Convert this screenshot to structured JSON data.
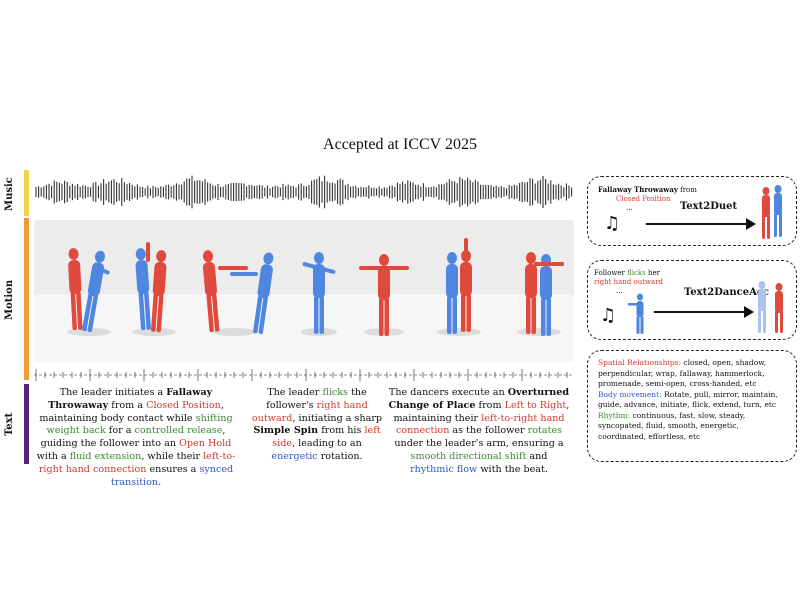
{
  "header": {
    "title": "Accepted at ICCV 2025"
  },
  "rows": {
    "music": "Music",
    "motion": "Motion",
    "text": "Text"
  },
  "colors": {
    "music": "#f1d34c",
    "motion": "#f19a35",
    "text": "#5a1f7a",
    "red": "#d03a2c",
    "green": "#3b8a2f",
    "blue": "#2f58c8"
  },
  "captions": {
    "c1": {
      "p1": "The leader initiates a ",
      "b1": "Fallaway Throwaway",
      "p2": " from a ",
      "r1": "Closed Position",
      "p3": ", maintaining body contact while ",
      "g1": "shifting weight back",
      "p4": " for a ",
      "g2": "controlled release",
      "p5": ", guiding the follower into an ",
      "r2": "Open Hold",
      "p6": " with a ",
      "g3": "fluid extension",
      "p7": ", while their ",
      "r3": "left-to-right hand connection",
      "p8": " ensures a ",
      "bl1": "synced transition",
      "p9": "."
    },
    "c2": {
      "p1": "The leader ",
      "g1": "flicks",
      "p2": " the follower's ",
      "r1": "right hand outward",
      "p3": ", initiating a sharp ",
      "b1": "Simple Spin",
      "p4": " from his ",
      "r2": "left side",
      "p5": ", leading to an ",
      "bl1": "energetic",
      "p6": " rotation."
    },
    "c3": {
      "p1": "The dancers execute an ",
      "b1": "Overturned Change of Place",
      "p2": " from ",
      "r1": "Left to Right",
      "p3": ", maintaining their ",
      "r2": "left-to-right hand connection",
      "p4": " as the follower ",
      "g1": "rotates",
      "p5": " under the leader's arm, ensuring a ",
      "g2": "smooth directional shift",
      "p6": " and ",
      "bl1": "rhythmic flow",
      "p7": " with the beat."
    }
  },
  "box1": {
    "b": "Fallaway Throwaway",
    "t": " from",
    "r": "Closed Position",
    "dots": "...",
    "title": "Text2Duet"
  },
  "box2": {
    "t1": "Follower ",
    "g": "flicks",
    "t2": " her",
    "r": "right hand outward",
    "dots": "...",
    "title": "Text2DanceAcc"
  },
  "legend": {
    "spatial_label": "Spatial Relationships:",
    "spatial": " closed, open, shadow, perpendicular, wrap, fallaway, hammerlock, promenade, semi-open, cross-handed, etc",
    "body_label": "Body movement:",
    "body": " Rotate, pull, mirror, maintain, guide, advance, initiate, flick, extend, turn, etc",
    "rhythm_label": "Rhythm:",
    "rhythm": " continuous, fast, slow, steady, syncopated, fluid, smooth, energetic, coordinated, effortless, etc"
  }
}
